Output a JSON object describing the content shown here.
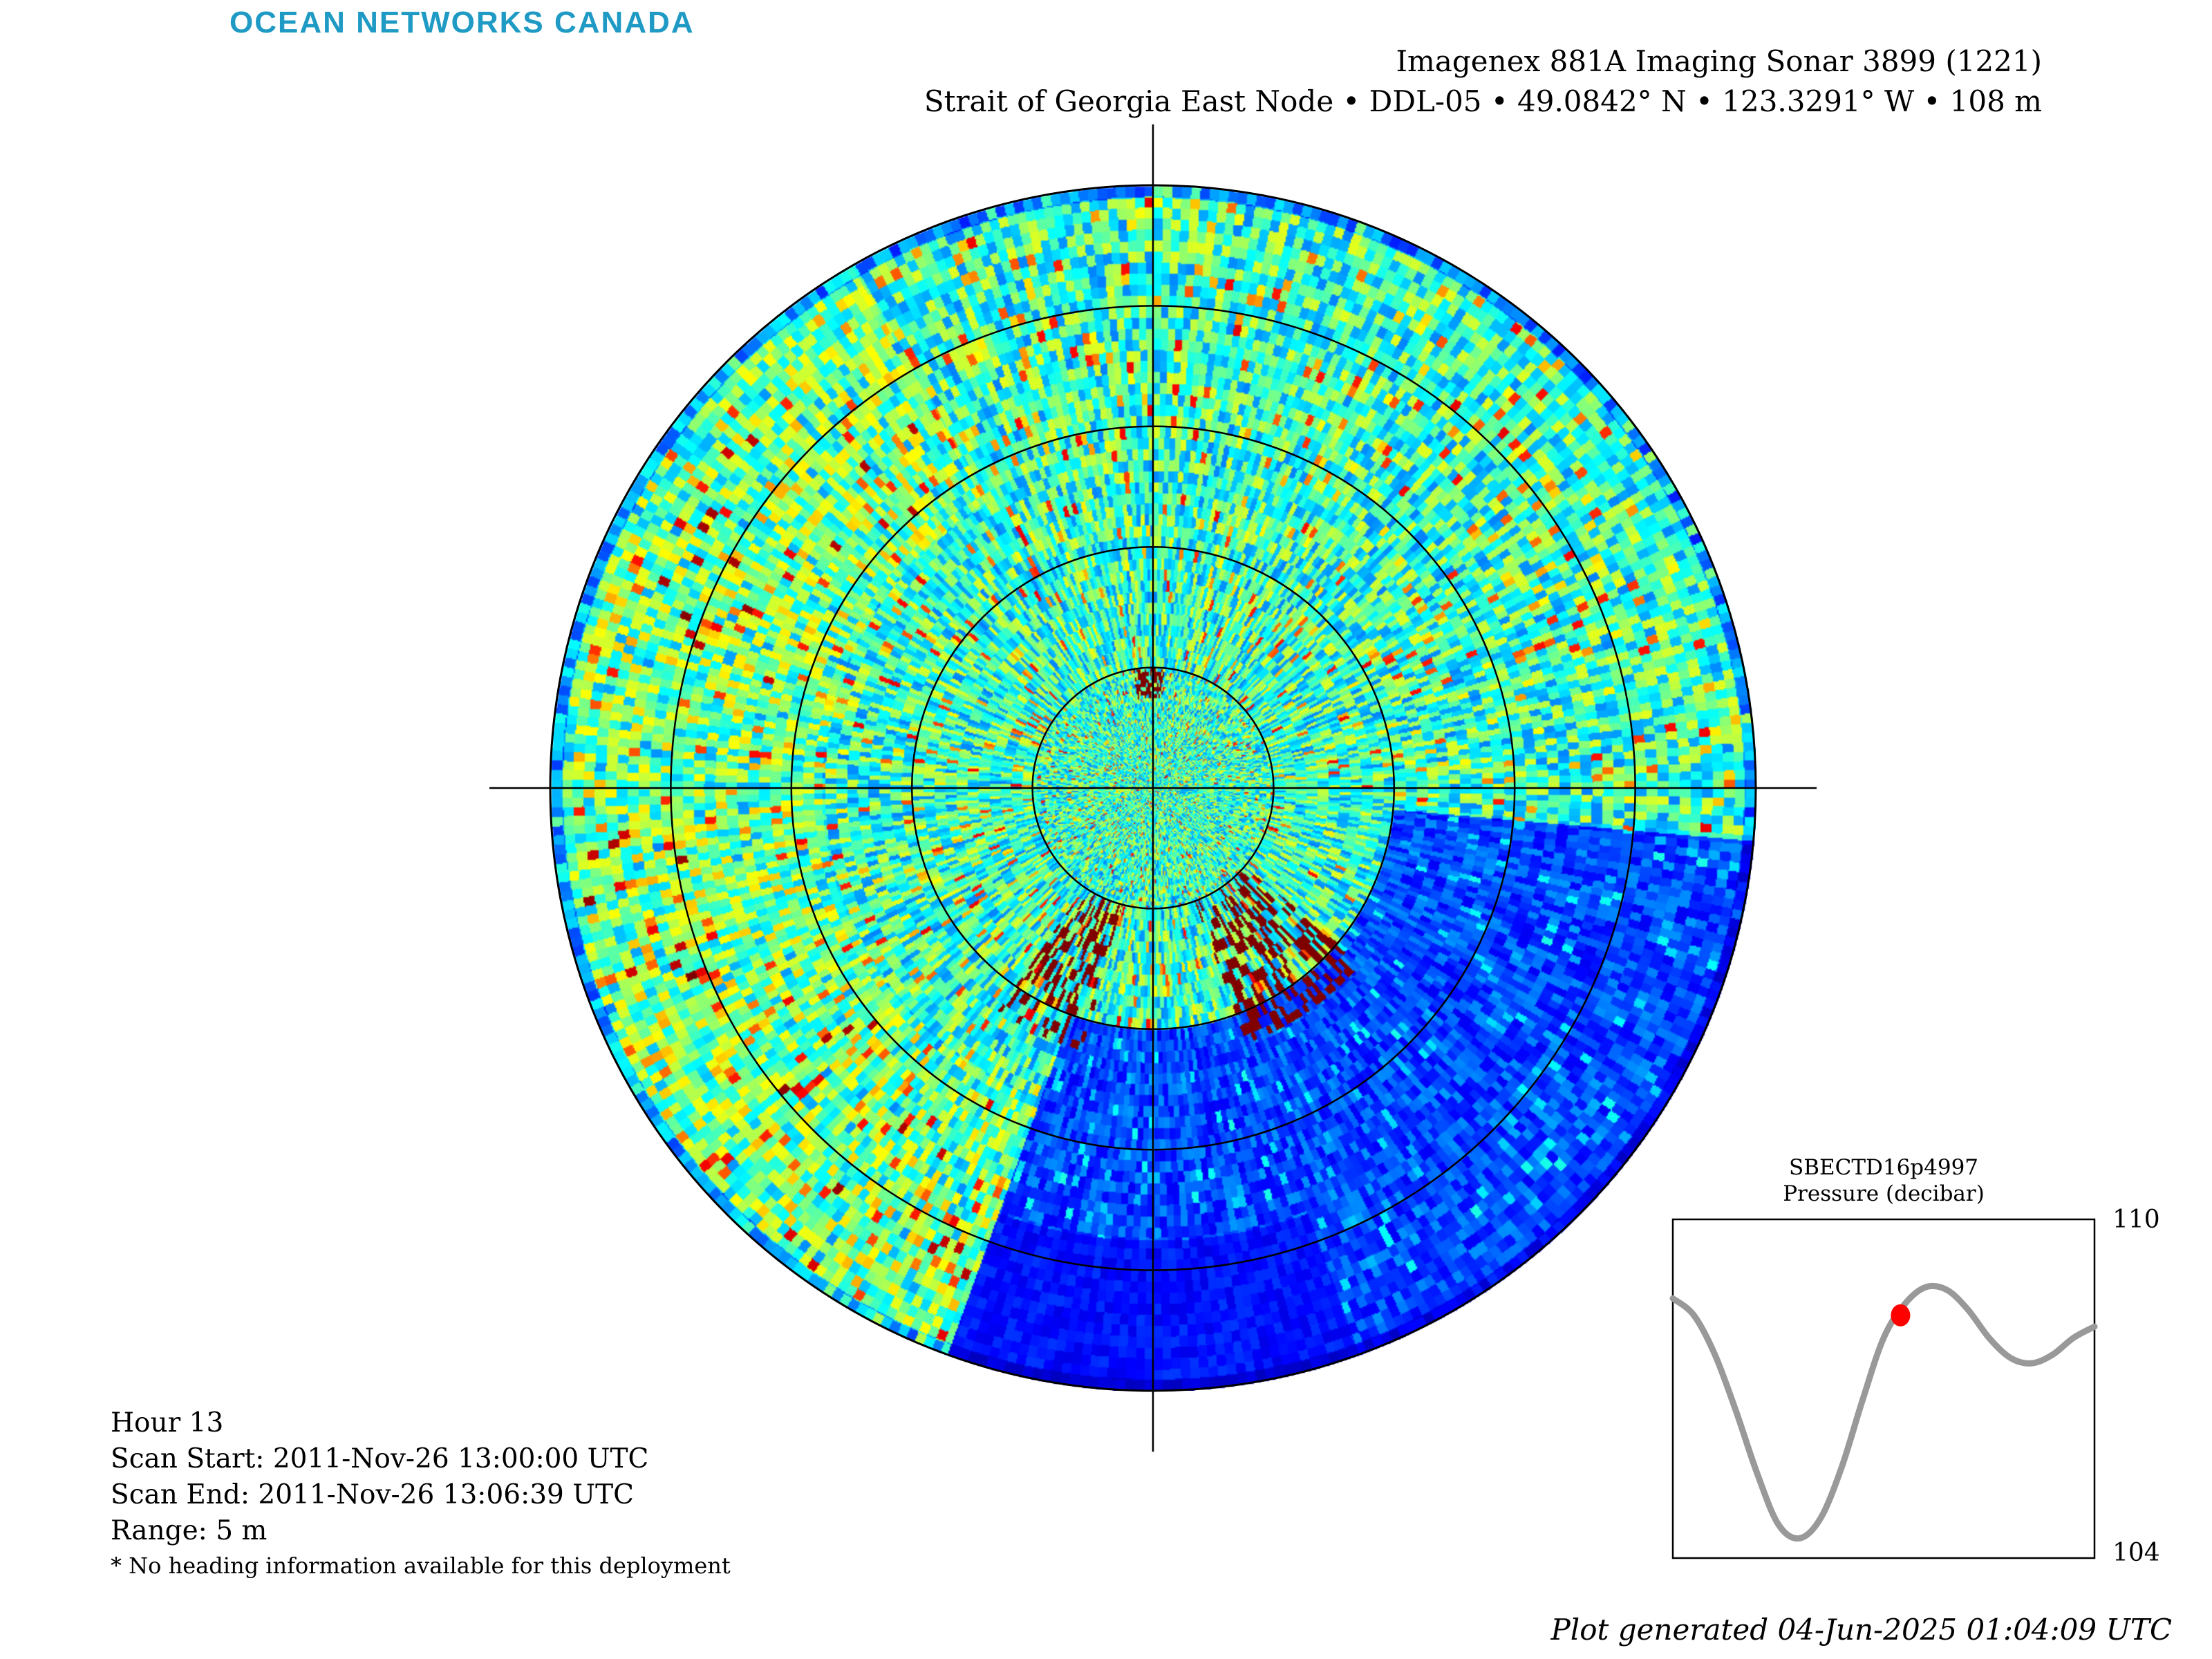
{
  "brand": "OCEAN NETWORKS CANADA",
  "title": {
    "line1": "Imagenex 881A Imaging Sonar 3899 (1221)",
    "line2": "Strait of Georgia East Node • DDL-05 • 49.0842° N • 123.3291° W • 108 m"
  },
  "sonar": {
    "range_m": 5,
    "range_rings": 5,
    "colormap": "jet"
  },
  "scan_info": {
    "hour": "Hour 13",
    "start": "Scan Start: 2011-Nov-26 13:00:00 UTC",
    "end": "Scan End: 2011-Nov-26 13:06:39 UTC",
    "range": "Range: 5 m",
    "note": "* No heading information available for this deployment"
  },
  "inset": {
    "sensor": "SBECTD16p4997",
    "quantity": "Pressure (decibar)",
    "ymax_label": "110",
    "ymin_label": "104",
    "line_color": "#999999",
    "marker_color": "#ff0000",
    "chart_data": {
      "type": "line",
      "title": "SBECTD16p4997",
      "ylabel": "Pressure (decibar)",
      "ylim": [
        104,
        110
      ],
      "x": [
        0,
        0.05,
        0.1,
        0.15,
        0.2,
        0.25,
        0.3,
        0.35,
        0.4,
        0.45,
        0.5,
        0.55,
        0.6,
        0.65,
        0.7,
        0.75,
        0.8,
        0.85,
        0.9,
        0.95,
        1.0
      ],
      "y": [
        108.6,
        108.3,
        107.6,
        106.6,
        105.5,
        104.6,
        104.35,
        104.7,
        105.6,
        106.8,
        107.9,
        108.5,
        108.8,
        108.75,
        108.4,
        107.9,
        107.55,
        107.45,
        107.6,
        107.9,
        108.1
      ],
      "marker": {
        "x": 0.54,
        "y": 108.3
      }
    }
  },
  "footer": {
    "generated": "Plot generated 04-Jun-2025 01:04:09 UTC"
  }
}
